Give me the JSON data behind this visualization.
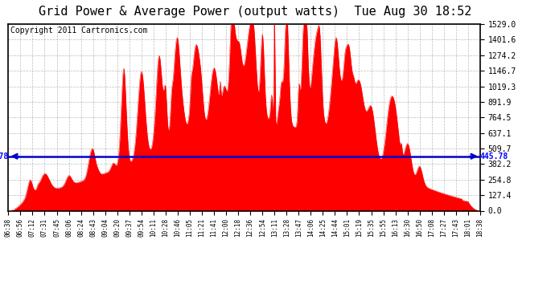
{
  "title": "Grid Power & Average Power (output watts)  Tue Aug 30 18:52",
  "copyright": "Copyright 2011 Cartronics.com",
  "avg_line_value": 445.78,
  "yticks": [
    0.0,
    127.4,
    254.8,
    382.2,
    509.7,
    637.1,
    764.5,
    891.9,
    1019.3,
    1146.7,
    1274.2,
    1401.6,
    1529.0
  ],
  "ymax": 1529.0,
  "ymin": 0.0,
  "fill_color": "#FF0000",
  "line_color": "#0000CC",
  "background_color": "#FFFFFF",
  "grid_color": "#AAAAAA",
  "title_fontsize": 11,
  "copyright_fontsize": 7,
  "xtick_labels": [
    "06:38",
    "06:56",
    "07:12",
    "07:31",
    "07:45",
    "08:06",
    "08:24",
    "08:43",
    "09:04",
    "09:20",
    "09:37",
    "09:54",
    "10:11",
    "10:28",
    "10:46",
    "11:05",
    "11:21",
    "11:41",
    "12:00",
    "12:18",
    "12:36",
    "12:54",
    "13:11",
    "13:28",
    "13:47",
    "14:06",
    "14:25",
    "14:44",
    "15:01",
    "15:19",
    "15:35",
    "15:55",
    "16:13",
    "16:30",
    "16:50",
    "17:08",
    "17:27",
    "17:43",
    "18:01",
    "18:38"
  ],
  "key_points": {
    "n_ticks": 40,
    "peak_index": 22,
    "peak_value": 1529,
    "avg_value": 445.78
  }
}
